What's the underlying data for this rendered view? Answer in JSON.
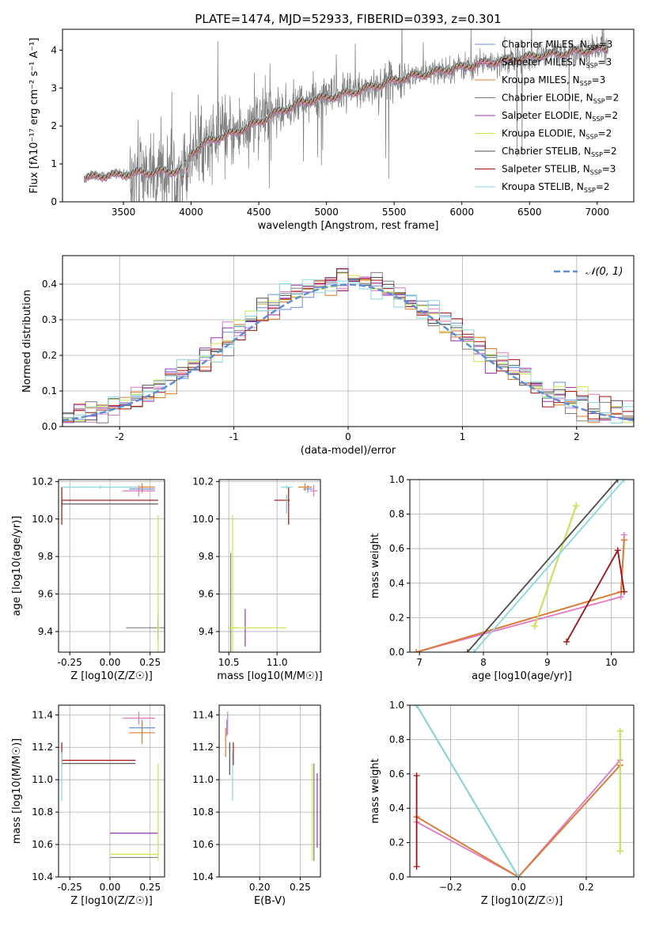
{
  "figure_title": "PLATE=1474, MJD=52933, FIBERID=0393, z=0.301",
  "colors": {
    "chabrier_miles": "#6a8fd8",
    "salpeter_miles": "#e377c2",
    "kroupa_miles": "#e07b28",
    "chabrier_elodie": "#7f7f7f",
    "salpeter_elodie": "#9a32b0",
    "kroupa_elodie": "#cde64a",
    "chabrier_stelib": "#4d4d4d",
    "salpeter_stelib": "#a50f0f",
    "kroupa_stelib": "#86d9e0",
    "normal": "#5b8fd6"
  },
  "chart_data": [
    {
      "id": "spectrum",
      "type": "line",
      "xlabel": "wavelength [Angstrom, rest frame]",
      "ylabel": "Flux [fλ10⁻¹⁷ erg cm⁻² s⁻¹ A⁻¹]",
      "xlim": [
        3050,
        7270
      ],
      "ylim": [
        0,
        4.55
      ],
      "xticks": [
        3500,
        4000,
        4500,
        5000,
        5500,
        6000,
        6500,
        7000
      ],
      "yticks": [
        0,
        1,
        2,
        3,
        4
      ],
      "grid": false,
      "legend_position": "top-right",
      "observed_range": [
        3210,
        7080
      ],
      "model_curve": {
        "x": [
          3210,
          3300,
          3400,
          3500,
          3600,
          3700,
          3800,
          3900,
          3950,
          4000,
          4100,
          4200,
          4300,
          4400,
          4500,
          4600,
          4700,
          4800,
          4900,
          5000,
          5100,
          5200,
          5300,
          5400,
          5500,
          5600,
          5700,
          5800,
          5900,
          6000,
          6100,
          6200,
          6300,
          6400,
          6500,
          6600,
          6700,
          6800,
          6900,
          7000,
          7080
        ],
        "y": [
          0.62,
          0.68,
          0.7,
          0.72,
          0.76,
          0.78,
          0.8,
          0.82,
          0.88,
          1.3,
          1.55,
          1.7,
          1.8,
          1.95,
          2.1,
          2.3,
          2.45,
          2.6,
          2.7,
          2.75,
          2.82,
          2.9,
          3.0,
          3.1,
          3.2,
          3.3,
          3.35,
          3.42,
          3.5,
          3.55,
          3.62,
          3.68,
          3.72,
          3.78,
          3.82,
          3.88,
          3.9,
          3.95,
          3.98,
          4.02,
          4.05
        ]
      },
      "series_legend": [
        {
          "name": "Chabrier MILES, N_SSP=3",
          "color_key": "chabrier_miles"
        },
        {
          "name": "Salpeter MILES, N_SSP=3",
          "color_key": "salpeter_miles"
        },
        {
          "name": "Kroupa MILES, N_SSP=3",
          "color_key": "kroupa_miles"
        },
        {
          "name": "Chabrier ELODIE, N_SSP=2",
          "color_key": "chabrier_elodie"
        },
        {
          "name": "Salpeter ELODIE, N_SSP=2",
          "color_key": "salpeter_elodie"
        },
        {
          "name": "Kroupa ELODIE, N_SSP=2",
          "color_key": "kroupa_elodie"
        },
        {
          "name": "Chabrier STELIB, N_SSP=2",
          "color_key": "chabrier_stelib"
        },
        {
          "name": "Salpeter STELIB, N_SSP=3",
          "color_key": "salpeter_stelib"
        },
        {
          "name": "Kroupa STELIB, N_SSP=2",
          "color_key": "kroupa_stelib"
        }
      ]
    },
    {
      "id": "residuals",
      "type": "step",
      "xlabel": "(data-model)/error",
      "ylabel": "Normed distribution",
      "xlim": [
        -2.5,
        2.5
      ],
      "ylim": [
        0,
        0.48
      ],
      "xticks": [
        -2,
        -1,
        0,
        1,
        2
      ],
      "yticks": [
        0.0,
        0.1,
        0.2,
        0.3,
        0.4
      ],
      "grid": true,
      "legend_position": "top-right",
      "legend": "𝒩(0, 1)",
      "bin_width": 0.1
    },
    {
      "id": "age_vs_Z",
      "type": "errorbar",
      "xlabel": "Z [log10(Z/Z☉)]",
      "ylabel": "age [log10(age/yr)]",
      "xlim": [
        -0.32,
        0.34
      ],
      "ylim": [
        9.29,
        10.21
      ],
      "xticks": [
        -0.25,
        0.0,
        0.25
      ],
      "yticks": [
        9.4,
        9.6,
        9.8,
        10.0,
        10.2
      ],
      "grid": true,
      "points": [
        {
          "c": "chabrier_miles",
          "x": 0.2,
          "xe": 0.08,
          "y": 10.16,
          "ye": 0.02
        },
        {
          "c": "salpeter_miles",
          "x": 0.18,
          "xe": 0.1,
          "y": 10.15,
          "ye": 0.03
        },
        {
          "c": "kroupa_miles",
          "x": 0.2,
          "xe": 0.08,
          "y": 10.17,
          "ye": 0.02
        },
        {
          "c": "chabrier_elodie",
          "x": 0.3,
          "xe": 0.2,
          "y": 9.42,
          "ye": 0.04
        },
        {
          "c": "salpeter_elodie",
          "x": 0.3,
          "xe": 0.01,
          "y": 9.42,
          "ye": 0.07
        },
        {
          "c": "kroupa_elodie",
          "x": 0.3,
          "xe": 0.01,
          "y": 9.42,
          "ye": 0.6
        },
        {
          "c": "chabrier_stelib",
          "x": -0.3,
          "xe": 0.0,
          "y": 10.08,
          "ye": 0.02
        },
        {
          "c": "chabrier_stelib",
          "x": 0.0,
          "xe": 0.3,
          "y": 10.08,
          "ye": 0.0
        },
        {
          "c": "salpeter_stelib",
          "x": 0.0,
          "xe": 0.3,
          "y": 10.1,
          "ye": 0.0
        },
        {
          "c": "salpeter_stelib",
          "x": -0.3,
          "xe": 0.0,
          "y": 10.07,
          "ye": 0.1
        },
        {
          "c": "kroupa_stelib",
          "x": -0.06,
          "xe": 0.24,
          "y": 10.17,
          "ye": 0.01
        }
      ]
    },
    {
      "id": "age_vs_mass",
      "type": "errorbar",
      "xlabel": "mass [log10(M/M☉)]",
      "ylabel": "",
      "xlim": [
        10.4,
        11.45
      ],
      "ylim": [
        9.29,
        10.21
      ],
      "xticks": [
        10.5,
        11.0
      ],
      "yticks": [
        9.4,
        9.6,
        9.8,
        10.0,
        10.2
      ],
      "grid": true,
      "points": [
        {
          "c": "chabrier_miles",
          "x": 11.32,
          "xe": 0.05,
          "y": 10.16,
          "ye": 0.02
        },
        {
          "c": "salpeter_miles",
          "x": 11.38,
          "xe": 0.04,
          "y": 10.15,
          "ye": 0.03
        },
        {
          "c": "kroupa_miles",
          "x": 11.29,
          "xe": 0.07,
          "y": 10.17,
          "ye": 0.02
        },
        {
          "c": "chabrier_elodie",
          "x": 10.52,
          "xe": 0.0,
          "y": 9.42,
          "ye": 0.4
        },
        {
          "c": "salpeter_elodie",
          "x": 10.67,
          "xe": 0.0,
          "y": 9.42,
          "ye": 0.1
        },
        {
          "c": "kroupa_elodie",
          "x": 10.54,
          "xe": 0.05,
          "y": 9.42,
          "ye": 0.6
        },
        {
          "c": "kroupa_elodie",
          "x": 10.8,
          "xe": 0.3,
          "y": 9.42,
          "ye": 0.0
        },
        {
          "c": "chabrier_stelib",
          "x": 11.1,
          "xe": 0.0,
          "y": 10.08,
          "ye": 0.05
        },
        {
          "c": "salpeter_stelib",
          "x": 11.05,
          "xe": 0.08,
          "y": 10.1,
          "ye": 0.0
        },
        {
          "c": "salpeter_stelib",
          "x": 11.12,
          "xe": 0.0,
          "y": 10.07,
          "ye": 0.1
        },
        {
          "c": "kroupa_stelib",
          "x": 11.1,
          "xe": 0.0,
          "y": 10.08,
          "ye": 0.05
        },
        {
          "c": "kroupa_stelib",
          "x": 11.1,
          "xe": 0.06,
          "y": 10.17,
          "ye": 0.01
        }
      ]
    },
    {
      "id": "weight_vs_age",
      "type": "line",
      "xlabel": "age [log10(age/yr)]",
      "ylabel": "mass weight",
      "xlim": [
        6.85,
        10.35
      ],
      "ylim": [
        0.0,
        1.0
      ],
      "xticks": [
        7,
        8,
        9,
        10
      ],
      "yticks": [
        0.0,
        0.2,
        0.4,
        0.6,
        0.8,
        1.0
      ],
      "grid": true,
      "series": [
        {
          "c": "chabrier_miles",
          "x": [
            6.95,
            10.15,
            10.2
          ],
          "y": [
            0.0,
            0.35,
            0.65
          ]
        },
        {
          "c": "salpeter_miles",
          "x": [
            6.95,
            10.15,
            10.2
          ],
          "y": [
            0.0,
            0.32,
            0.68
          ]
        },
        {
          "c": "kroupa_miles",
          "x": [
            6.95,
            10.15,
            10.2
          ],
          "y": [
            0.0,
            0.35,
            0.65
          ]
        },
        {
          "c": "chabrier_elodie",
          "x": [
            8.8,
            9.45
          ],
          "y": [
            0.15,
            0.85
          ]
        },
        {
          "c": "kroupa_elodie",
          "x": [
            8.8,
            9.45
          ],
          "y": [
            0.15,
            0.85
          ]
        },
        {
          "c": "chabrier_stelib",
          "x": [
            7.75,
            10.1
          ],
          "y": [
            0.0,
            1.0
          ]
        },
        {
          "c": "salpeter_stelib",
          "x": [
            9.3,
            10.1,
            10.2
          ],
          "y": [
            0.06,
            0.59,
            0.35
          ]
        },
        {
          "c": "kroupa_stelib",
          "x": [
            7.85,
            10.2
          ],
          "y": [
            0.0,
            1.0
          ]
        }
      ]
    },
    {
      "id": "mass_vs_Z",
      "type": "errorbar",
      "xlabel": "Z [log10(Z/Z☉)]",
      "ylabel": "mass [log10(M/M☉)]",
      "xlim": [
        -0.32,
        0.34
      ],
      "ylim": [
        10.4,
        11.46
      ],
      "xticks": [
        -0.25,
        0.0,
        0.25
      ],
      "yticks": [
        10.4,
        10.6,
        10.8,
        11.0,
        11.2,
        11.4
      ],
      "grid": true,
      "points": [
        {
          "c": "chabrier_miles",
          "x": 0.2,
          "xe": 0.08,
          "y": 11.32,
          "ye": 0.05
        },
        {
          "c": "salpeter_miles",
          "x": 0.18,
          "xe": 0.1,
          "y": 11.38,
          "ye": 0.04
        },
        {
          "c": "kroupa_miles",
          "x": 0.2,
          "xe": 0.08,
          "y": 11.29,
          "ye": 0.07
        },
        {
          "c": "chabrier_elodie",
          "x": 0.15,
          "xe": 0.15,
          "y": 10.52,
          "ye": 0.0
        },
        {
          "c": "salpeter_elodie",
          "x": 0.15,
          "xe": 0.15,
          "y": 10.67,
          "ye": 0.0
        },
        {
          "c": "kroupa_elodie",
          "x": 0.15,
          "xe": 0.15,
          "y": 10.54,
          "ye": 0.0
        },
        {
          "c": "kroupa_elodie",
          "x": 0.3,
          "xe": 0.0,
          "y": 10.8,
          "ye": 0.3
        },
        {
          "c": "chabrier_stelib",
          "x": -0.07,
          "xe": 0.23,
          "y": 11.1,
          "ye": 0.0
        },
        {
          "c": "salpeter_stelib",
          "x": -0.07,
          "xe": 0.23,
          "y": 11.12,
          "ye": 0.0
        },
        {
          "c": "salpeter_stelib",
          "x": -0.3,
          "xe": 0.0,
          "y": 11.16,
          "ye": 0.07
        },
        {
          "c": "kroupa_stelib",
          "x": -0.3,
          "xe": 0.0,
          "y": 11.02,
          "ye": 0.15
        }
      ]
    },
    {
      "id": "mass_vs_ebv",
      "type": "errorbar",
      "xlabel": "E(B-V)",
      "ylabel": "",
      "xlim": [
        0.15,
        0.275
      ],
      "ylim": [
        10.4,
        11.46
      ],
      "xticks": [
        0.2,
        0.25
      ],
      "yticks": [
        10.4,
        10.6,
        10.8,
        11.0,
        11.2,
        11.4
      ],
      "grid": true,
      "points": [
        {
          "c": "chabrier_miles",
          "x": 0.1595,
          "xe": 0.0,
          "y": 11.32,
          "ye": 0.05
        },
        {
          "c": "salpeter_miles",
          "x": 0.1605,
          "xe": 0.0,
          "y": 11.35,
          "ye": 0.07
        },
        {
          "c": "kroupa_miles",
          "x": 0.158,
          "xe": 0.0,
          "y": 11.23,
          "ye": 0.09
        },
        {
          "c": "chabrier_elodie",
          "x": 0.267,
          "xe": 0.0,
          "y": 10.8,
          "ye": 0.3
        },
        {
          "c": "salpeter_elodie",
          "x": 0.271,
          "xe": 0.0,
          "y": 10.81,
          "ye": 0.23
        },
        {
          "c": "kroupa_elodie",
          "x": 0.265,
          "xe": 0.0,
          "y": 10.8,
          "ye": 0.3
        },
        {
          "c": "chabrier_stelib",
          "x": 0.163,
          "xe": 0.0,
          "y": 11.13,
          "ye": 0.1
        },
        {
          "c": "salpeter_stelib",
          "x": 0.1675,
          "xe": 0.0,
          "y": 11.16,
          "ye": 0.07
        },
        {
          "c": "kroupa_stelib",
          "x": 0.1665,
          "xe": 0.0,
          "y": 11.02,
          "ye": 0.15
        }
      ]
    },
    {
      "id": "weight_vs_Z",
      "type": "line",
      "xlabel": "Z [log10(Z/Z☉)]",
      "ylabel": "mass weight",
      "xlim": [
        -0.32,
        0.34
      ],
      "ylim": [
        0.0,
        1.0
      ],
      "xticks": [
        -0.2,
        0.0,
        0.2
      ],
      "yticks": [
        0.0,
        0.2,
        0.4,
        0.6,
        0.8,
        1.0
      ],
      "grid": true,
      "series": [
        {
          "c": "chabrier_miles",
          "x": [
            -0.3,
            0.0,
            0.3
          ],
          "y": [
            0.35,
            0.0,
            0.65
          ]
        },
        {
          "c": "salpeter_miles",
          "x": [
            -0.3,
            0.0,
            0.3
          ],
          "y": [
            0.32,
            0.0,
            0.68
          ]
        },
        {
          "c": "kroupa_miles",
          "x": [
            -0.3,
            0.0,
            0.3
          ],
          "y": [
            0.35,
            0.0,
            0.65
          ]
        },
        {
          "c": "chabrier_elodie",
          "x": [
            0.3,
            0.3
          ],
          "y": [
            0.15,
            0.85
          ]
        },
        {
          "c": "kroupa_elodie",
          "x": [
            0.3,
            0.3
          ],
          "y": [
            0.15,
            0.85
          ]
        },
        {
          "c": "chabrier_stelib",
          "x": [
            -0.3,
            0.0
          ],
          "y": [
            1.0,
            0.0
          ]
        },
        {
          "c": "salpeter_stelib",
          "x": [
            -0.3,
            -0.3
          ],
          "y": [
            0.06,
            0.59
          ]
        },
        {
          "c": "kroupa_stelib",
          "x": [
            -0.3,
            0.0
          ],
          "y": [
            1.0,
            0.0
          ]
        }
      ]
    }
  ]
}
